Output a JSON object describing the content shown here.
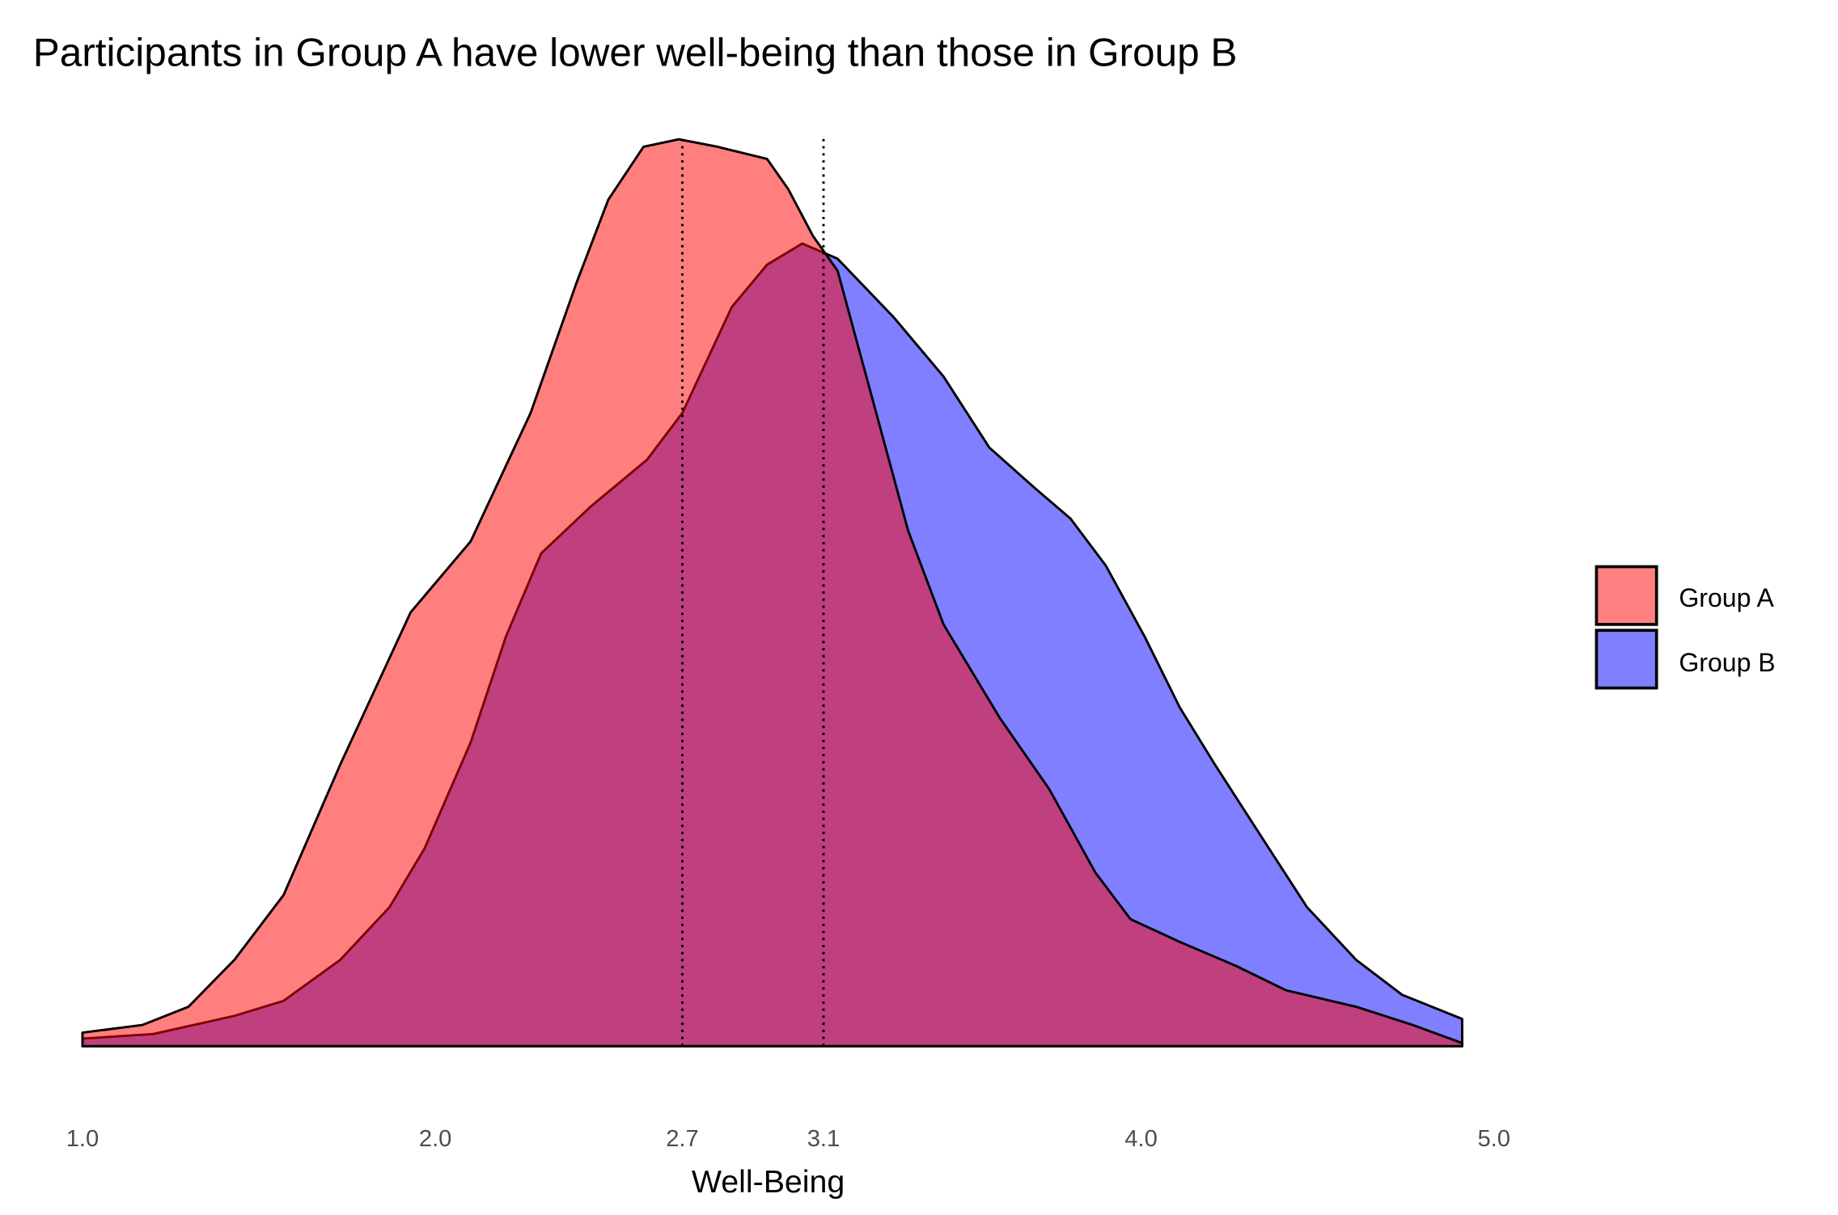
{
  "chart_data": {
    "type": "area",
    "subtype": "density",
    "title": "Participants in Group A have lower well-being than those in Group B",
    "xlabel": "Well-Being",
    "ylabel": "",
    "xlim": [
      1.0,
      5.0
    ],
    "ylim": [
      0,
      0.62
    ],
    "y_axis_visible": false,
    "grid": false,
    "x_ticks": [
      "1.0",
      "2.0",
      "2.7",
      "3.1",
      "4.0",
      "5.0"
    ],
    "x_tick_values": [
      1.0,
      2.0,
      2.7,
      3.1,
      4.0,
      5.0
    ],
    "reference_lines": [
      {
        "x": 2.7,
        "style": "dotted",
        "series": "Group A"
      },
      {
        "x": 3.1,
        "style": "dotted",
        "series": "Group B"
      }
    ],
    "legend": {
      "position": "right",
      "entries": [
        "Group A",
        "Group B"
      ]
    },
    "series": [
      {
        "name": "Group A",
        "color": "#FF0000",
        "opacity": 0.5,
        "x": [
          1.0,
          1.17,
          1.3,
          1.43,
          1.57,
          1.73,
          1.93,
          2.1,
          2.27,
          2.4,
          2.49,
          2.59,
          2.69,
          2.8,
          2.94,
          3.0,
          3.07,
          3.14,
          3.24,
          3.34,
          3.44,
          3.6,
          3.74,
          3.87,
          3.97,
          4.11,
          4.27,
          4.41,
          4.61,
          4.77,
          4.91
        ],
        "y": [
          0.009,
          0.014,
          0.026,
          0.057,
          0.1,
          0.186,
          0.287,
          0.334,
          0.419,
          0.505,
          0.56,
          0.595,
          0.6,
          0.595,
          0.587,
          0.567,
          0.536,
          0.513,
          0.427,
          0.341,
          0.279,
          0.217,
          0.17,
          0.115,
          0.084,
          0.069,
          0.053,
          0.037,
          0.026,
          0.014,
          0.002
        ]
      },
      {
        "name": "Group B",
        "color": "#0000FF",
        "opacity": 0.5,
        "x": [
          1.0,
          1.2,
          1.43,
          1.57,
          1.73,
          1.87,
          1.97,
          2.1,
          2.2,
          2.3,
          2.44,
          2.6,
          2.7,
          2.84,
          2.94,
          3.04,
          3.14,
          3.3,
          3.44,
          3.57,
          3.7,
          3.8,
          3.9,
          4.01,
          4.11,
          4.21,
          4.34,
          4.47,
          4.61,
          4.74,
          4.91
        ],
        "y": [
          0.005,
          0.008,
          0.02,
          0.03,
          0.057,
          0.092,
          0.131,
          0.201,
          0.271,
          0.326,
          0.357,
          0.388,
          0.419,
          0.489,
          0.517,
          0.531,
          0.521,
          0.482,
          0.443,
          0.396,
          0.369,
          0.349,
          0.318,
          0.271,
          0.224,
          0.186,
          0.139,
          0.092,
          0.057,
          0.034,
          0.018
        ]
      }
    ]
  }
}
